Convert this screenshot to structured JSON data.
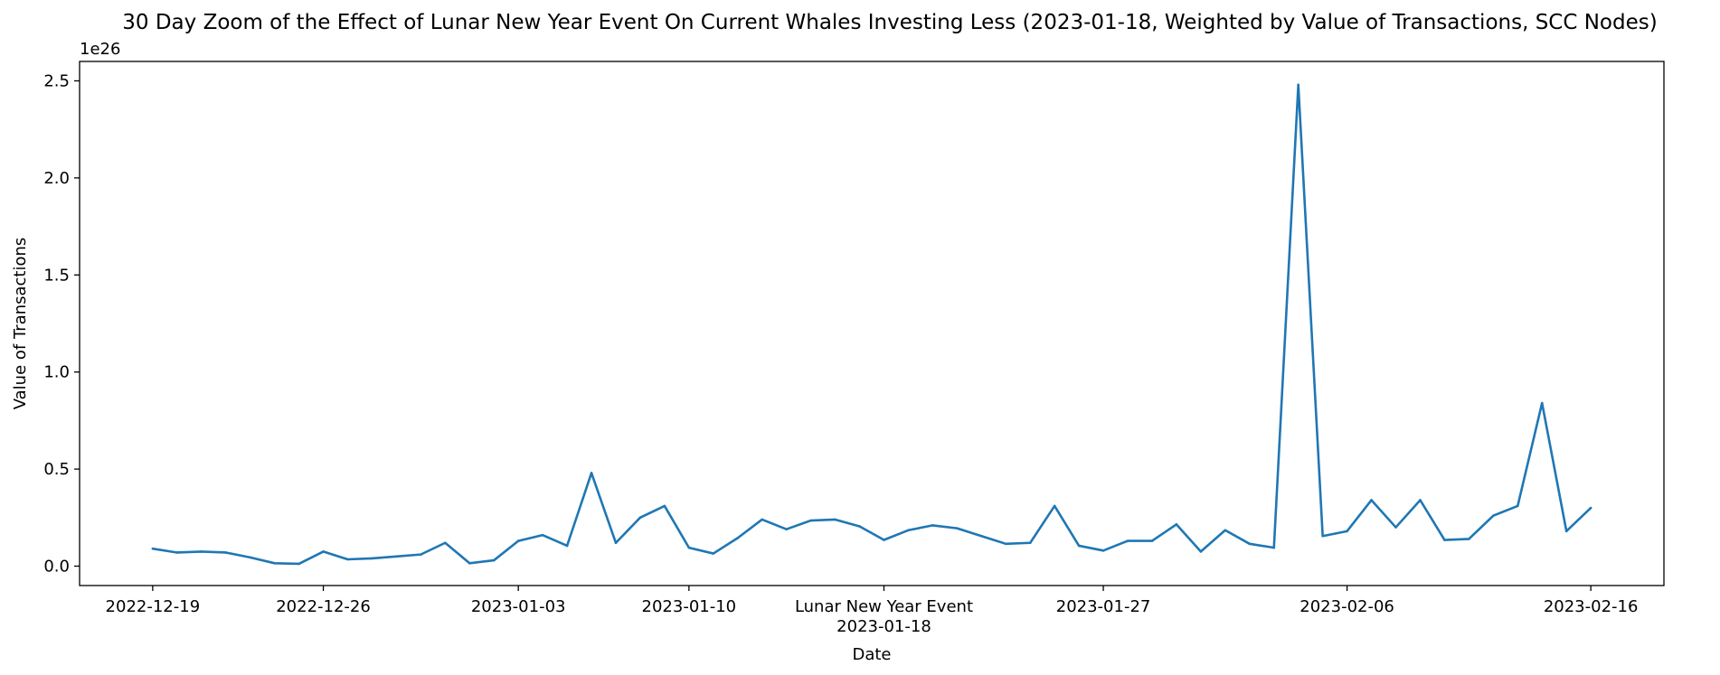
{
  "chart_data": {
    "type": "line",
    "title": "30 Day Zoom of the Effect of Lunar New Year Event On Current Whales Investing Less (2023-01-18, Weighted by Value of Transactions, SCC Nodes)",
    "xlabel": "Date",
    "ylabel": "Value of Transactions",
    "y_offset_label": "1e26",
    "y_unit_multiplier": 1e+26,
    "ylim": [
      -0.1,
      2.6
    ],
    "xlim": [
      "2022-12-16",
      "2023-02-19"
    ],
    "grid": false,
    "line_color": "#1f77b4",
    "y_ticks": [
      {
        "value": 0.0,
        "label": "0.0"
      },
      {
        "value": 0.5,
        "label": "0.5"
      },
      {
        "value": 1.0,
        "label": "1.0"
      },
      {
        "value": 1.5,
        "label": "1.5"
      },
      {
        "value": 2.0,
        "label": "2.0"
      },
      {
        "value": 2.5,
        "label": "2.5"
      }
    ],
    "x_ticks": [
      {
        "date": "2022-12-19",
        "lines": [
          "2022-12-19"
        ]
      },
      {
        "date": "2022-12-26",
        "lines": [
          "2022-12-26"
        ]
      },
      {
        "date": "2023-01-03",
        "lines": [
          "2023-01-03"
        ]
      },
      {
        "date": "2023-01-10",
        "lines": [
          "2023-01-10"
        ]
      },
      {
        "date": "2023-01-18",
        "lines": [
          "Lunar New Year Event",
          "2023-01-18"
        ]
      },
      {
        "date": "2023-01-27",
        "lines": [
          "2023-01-27"
        ]
      },
      {
        "date": "2023-02-06",
        "lines": [
          "2023-02-06"
        ]
      },
      {
        "date": "2023-02-16",
        "lines": [
          "2023-02-16"
        ]
      }
    ],
    "series": [
      {
        "x": [
          "2022-12-19",
          "2022-12-20",
          "2022-12-21",
          "2022-12-22",
          "2022-12-23",
          "2022-12-24",
          "2022-12-25",
          "2022-12-26",
          "2022-12-27",
          "2022-12-28",
          "2022-12-29",
          "2022-12-30",
          "2022-12-31",
          "2023-01-01",
          "2023-01-02",
          "2023-01-03",
          "2023-01-04",
          "2023-01-05",
          "2023-01-06",
          "2023-01-07",
          "2023-01-08",
          "2023-01-09",
          "2023-01-10",
          "2023-01-11",
          "2023-01-12",
          "2023-01-13",
          "2023-01-14",
          "2023-01-15",
          "2023-01-16",
          "2023-01-17",
          "2023-01-18",
          "2023-01-19",
          "2023-01-20",
          "2023-01-21",
          "2023-01-22",
          "2023-01-23",
          "2023-01-24",
          "2023-01-25",
          "2023-01-26",
          "2023-01-27",
          "2023-01-28",
          "2023-01-29",
          "2023-01-30",
          "2023-01-31",
          "2023-02-01",
          "2023-02-02",
          "2023-02-03",
          "2023-02-04",
          "2023-02-05",
          "2023-02-06",
          "2023-02-07",
          "2023-02-08",
          "2023-02-09",
          "2023-02-10",
          "2023-02-11",
          "2023-02-12",
          "2023-02-13",
          "2023-02-14",
          "2023-02-15",
          "2023-02-16"
        ],
        "values": [
          0.09,
          0.07,
          0.075,
          0.07,
          0.045,
          0.015,
          0.012,
          0.075,
          0.035,
          0.04,
          0.05,
          0.06,
          0.12,
          0.015,
          0.03,
          0.13,
          0.16,
          0.105,
          0.48,
          0.12,
          0.25,
          0.31,
          0.095,
          0.065,
          0.145,
          0.24,
          0.19,
          0.235,
          0.24,
          0.205,
          0.135,
          0.185,
          0.21,
          0.195,
          0.155,
          0.115,
          0.12,
          0.31,
          0.105,
          0.08,
          0.13,
          0.13,
          0.215,
          0.075,
          0.185,
          0.115,
          0.095,
          2.48,
          0.155,
          0.18,
          0.34,
          0.2,
          0.34,
          0.135,
          0.14,
          0.26,
          0.31,
          0.84,
          0.18,
          0.3
        ]
      }
    ]
  }
}
